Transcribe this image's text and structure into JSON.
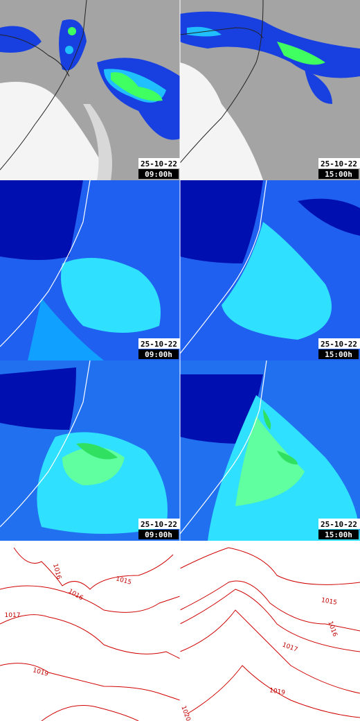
{
  "panels": [
    {
      "date": "25-10-22",
      "time": "09:00h"
    },
    {
      "date": "25-10-22",
      "time": "15:00h"
    },
    {
      "date": "25-10-22",
      "time": "09:00h"
    },
    {
      "date": "25-10-22",
      "time": "15:00h"
    },
    {
      "date": "25-10-22",
      "time": "09:00h"
    },
    {
      "date": "25-10-22",
      "time": "15:00h"
    }
  ],
  "isobars": [
    {
      "labels": [
        "1016",
        "1015",
        "1016",
        "1017",
        "1019"
      ]
    },
    {
      "labels": [
        "1015",
        "1016",
        "1017",
        "1019",
        "1020"
      ]
    }
  ]
}
